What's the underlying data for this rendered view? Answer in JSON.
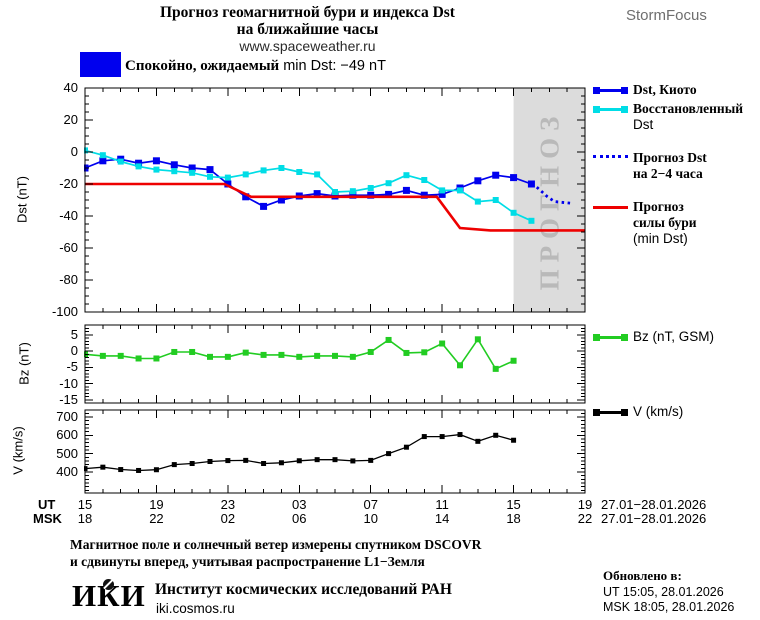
{
  "header": {
    "title_line1": "Прогноз геомагнитной бури и индекса Dst",
    "title_line2": "на ближайшие часы",
    "website": "www.spaceweather.ru",
    "brand": "StormFocus"
  },
  "status": {
    "text_cyr": "Спокойно, ожидаемый",
    "text_lat": "min Dst: −49 nT",
    "box_color": "#0000ee"
  },
  "legend": {
    "items": [
      {
        "id": "dst-kyoto",
        "swatch": "line-marker",
        "color": "#0000ee",
        "lines": [
          "Dst, Киото"
        ]
      },
      {
        "id": "dst-restored",
        "swatch": "line-marker",
        "color": "#00dde6",
        "lines": [
          "Восстановленный",
          "Dst"
        ]
      },
      {
        "id": "dst-forecast",
        "swatch": "line-dotted",
        "color": "#0000ee",
        "lines": [
          "Прогноз Dst",
          "на 2−4 часа"
        ]
      },
      {
        "id": "storm-strength-forecast",
        "swatch": "line",
        "color": "#ee0000",
        "lines": [
          "Прогноз",
          "силы бури",
          "(min Dst)"
        ]
      },
      {
        "id": "bz",
        "swatch": "line-marker",
        "color": "#22cc22",
        "lines": [
          "Bz (nT, GSM)"
        ]
      },
      {
        "id": "v",
        "swatch": "line-marker",
        "color": "#000000",
        "lines": [
          "V (km/s)"
        ]
      }
    ]
  },
  "axes": {
    "dst_ylabel": "Dst (nT)",
    "bz_ylabel": "Bz (nT)",
    "v_ylabel": "V (km/s)",
    "dst_yticks": [
      40,
      20,
      0,
      -20,
      -40,
      -60,
      -80,
      -100
    ],
    "bz_yticks": [
      5,
      0,
      -5,
      -10,
      -15
    ],
    "v_yticks": [
      700,
      600,
      500,
      400
    ],
    "ut_label": "UT",
    "msk_label": "MSK",
    "ut_hours": [
      "15",
      "19",
      "23",
      "03",
      "07",
      "11",
      "15",
      "19"
    ],
    "msk_hours": [
      "18",
      "22",
      "02",
      "06",
      "10",
      "14",
      "18",
      "22"
    ],
    "ut_date": "27.01−28.01.2026",
    "msk_date": "27.01−28.01.2026"
  },
  "chart_data": [
    {
      "type": "line",
      "panel": "dst",
      "ylabel": "Dst (nT)",
      "ylim": [
        -100,
        40
      ],
      "x_hours_span": 28,
      "x_axis": "time UT from 15:00 27.01.2026 to 19:00 28.01.2026, hourly points",
      "forecast_region_start_hour": 24,
      "watermark": "ПРОГНОЗ",
      "series": [
        {
          "name": "Dst, Киото",
          "color": "#0000ee",
          "marker": 7,
          "width": 1.7,
          "start": 0,
          "step": 1,
          "values": [
            -10,
            -5.5,
            -4.5,
            -7,
            -5.5,
            -8,
            -10,
            -11,
            -20,
            -28,
            -34,
            -30,
            -27.5,
            -26,
            -27.5,
            -27,
            -27,
            -26.5,
            -24,
            -27,
            -26.5,
            -22.5,
            -18,
            -14.5,
            -16,
            -20
          ]
        },
        {
          "name": "Восстановленный Dst",
          "color": "#00dde6",
          "marker": 6,
          "width": 1.7,
          "start": 0,
          "step": 1,
          "values": [
            1,
            -2,
            -6,
            -9,
            -11,
            -12,
            -13,
            -15.5,
            -16,
            -14,
            -11.5,
            -10,
            -12.5,
            -14,
            -25,
            -24.5,
            -22.5,
            -19.5,
            -14.5,
            -17.5,
            -24,
            -24,
            -31,
            -30,
            -38,
            -43
          ]
        },
        {
          "name": "Прогноз Dst на 2-4 часа",
          "color": "#0000ee",
          "width": 2.8,
          "dash": "2.5 3.5",
          "points": [
            [
              25.3,
              -22
            ],
            [
              25.9,
              -28
            ],
            [
              26.3,
              -31
            ],
            [
              27.2,
              -32
            ]
          ]
        },
        {
          "name": "Прогноз силы бури (min Dst)",
          "color": "#ee0000",
          "width": 2.6,
          "points": [
            [
              0,
              -20
            ],
            [
              7.8,
              -20
            ],
            [
              9.3,
              -28
            ],
            [
              19.7,
              -28
            ],
            [
              21,
              -47.5
            ],
            [
              22.7,
              -49
            ],
            [
              28,
              -49
            ]
          ]
        }
      ]
    },
    {
      "type": "line",
      "panel": "bz",
      "ylabel": "Bz (nT)",
      "legend": "Bz (nT, GSM)",
      "ylim": [
        -16,
        8
      ],
      "series": [
        {
          "name": "Bz (nT, GSM)",
          "color": "#22cc22",
          "marker": 6,
          "width": 1.6,
          "start": 0,
          "step": 1,
          "values": [
            -1,
            -1.5,
            -1.5,
            -2.3,
            -2.3,
            -0.3,
            -0.3,
            -1.8,
            -1.8,
            -0.5,
            -1.2,
            -1.2,
            -1.8,
            -1.5,
            -1.5,
            -1.8,
            -0.3,
            3.4,
            -0.6,
            -0.4,
            2.3,
            -4.4,
            3.6,
            -5.5,
            -3
          ]
        }
      ]
    },
    {
      "type": "line",
      "panel": "v",
      "ylabel": "V (km/s)",
      "legend": "V (km/s)",
      "ylim": [
        285,
        738
      ],
      "series": [
        {
          "name": "V (km/s)",
          "color": "#000000",
          "marker": 5,
          "width": 1.3,
          "start": 0,
          "step": 1,
          "values": [
            418,
            426,
            413,
            408,
            412,
            440,
            446,
            457,
            462,
            463,
            446,
            450,
            461,
            467,
            467,
            460,
            463,
            500,
            535,
            593,
            593,
            604,
            567,
            600,
            573
          ]
        }
      ]
    }
  ],
  "footer": {
    "note_line1": "Магнитное поле и солнечный ветер измерены спутником DSCOVR",
    "note_line2": "и сдвинуты вперед, учитывая распространение L1−Земля",
    "logo": "ИКИ",
    "institute": "Институт космических исследований РАН",
    "site": "iki.cosmos.ru",
    "updated_label": "Обновлено в:",
    "updated_ut": "UT  15:05, 28.01.2026",
    "updated_msk": "MSK 18:05, 28.01.2026"
  }
}
